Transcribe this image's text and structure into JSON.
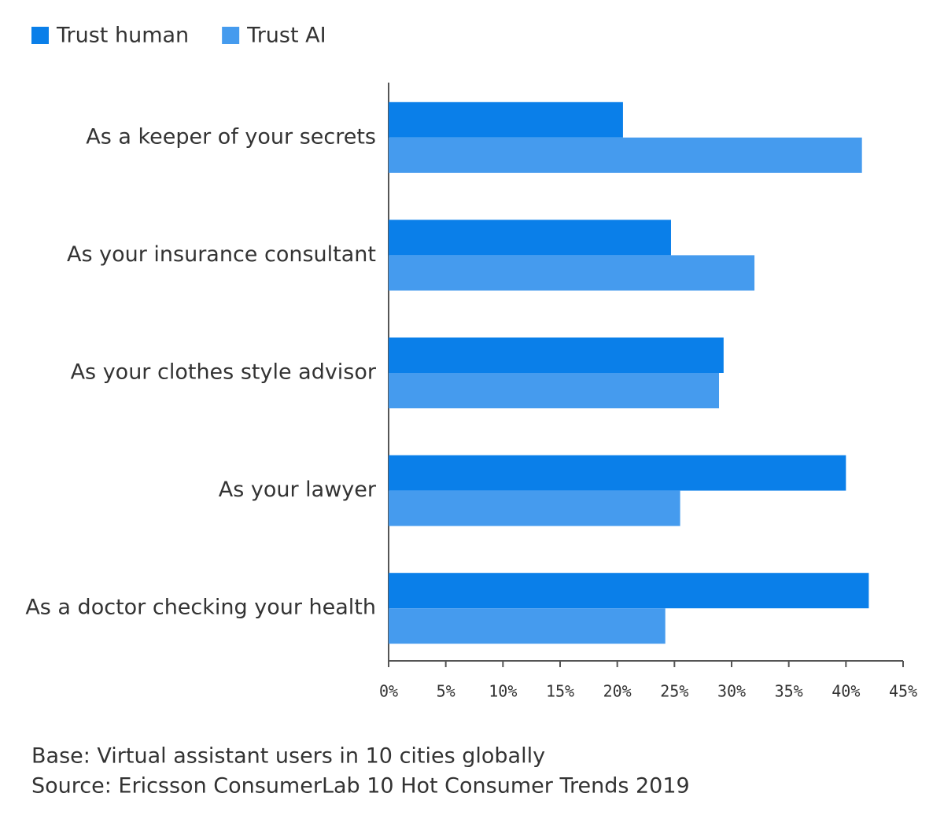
{
  "chart_data": {
    "type": "hbar",
    "categories": [
      "As a keeper of your secrets",
      "As your insurance consultant",
      "As your clothes style advisor",
      "As your lawyer",
      "As a doctor checking your health"
    ],
    "series": [
      {
        "name": "Trust human",
        "color": "#0a7fe9",
        "values": [
          20.5,
          24.7,
          29.3,
          40.0,
          42.0
        ]
      },
      {
        "name": "Trust AI",
        "color": "#459bee",
        "values": [
          41.4,
          32.0,
          28.9,
          25.5,
          24.2
        ]
      }
    ],
    "xlim": [
      0,
      45
    ],
    "xticks": [
      {
        "value": 0,
        "label": "0%"
      },
      {
        "value": 5,
        "label": "5%"
      },
      {
        "value": 10,
        "label": "10%"
      },
      {
        "value": 15,
        "label": "15%"
      },
      {
        "value": 20,
        "label": "20%"
      },
      {
        "value": 25,
        "label": "25%"
      },
      {
        "value": 30,
        "label": "30%"
      },
      {
        "value": 35,
        "label": "35%"
      },
      {
        "value": 40,
        "label": "40%"
      },
      {
        "value": 45,
        "label": "45%"
      }
    ],
    "legend": "top-left",
    "notes": [
      "Base: Virtual assistant users in 10 cities globally",
      "Source: Ericsson ConsumerLab 10 Hot Consumer Trends 2019"
    ]
  }
}
